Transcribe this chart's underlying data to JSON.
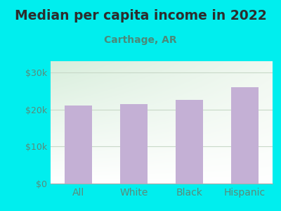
{
  "title": "Median per capita income in 2022",
  "subtitle": "Carthage, AR",
  "categories": [
    "All",
    "White",
    "Black",
    "Hispanic"
  ],
  "values": [
    21000,
    21500,
    22500,
    26000
  ],
  "bar_color": "#C4B0D5",
  "background_color": "#00EEEE",
  "plot_bg_color_topleft": "#d8eedc",
  "plot_bg_color_topright": "#f0f8f0",
  "plot_bg_color_bottom": "#ffffff",
  "title_color": "#2d2d2d",
  "subtitle_color": "#4a8a7a",
  "axis_label_color": "#5a8a7a",
  "grid_color": "#c8d8c8",
  "ytick_labels": [
    "$0",
    "$10k",
    "$20k",
    "$30k"
  ],
  "ytick_values": [
    0,
    10000,
    20000,
    30000
  ],
  "ylim": [
    0,
    33000
  ],
  "title_fontsize": 13.5,
  "subtitle_fontsize": 10,
  "tick_fontsize": 9,
  "xlabel_fontsize": 10
}
